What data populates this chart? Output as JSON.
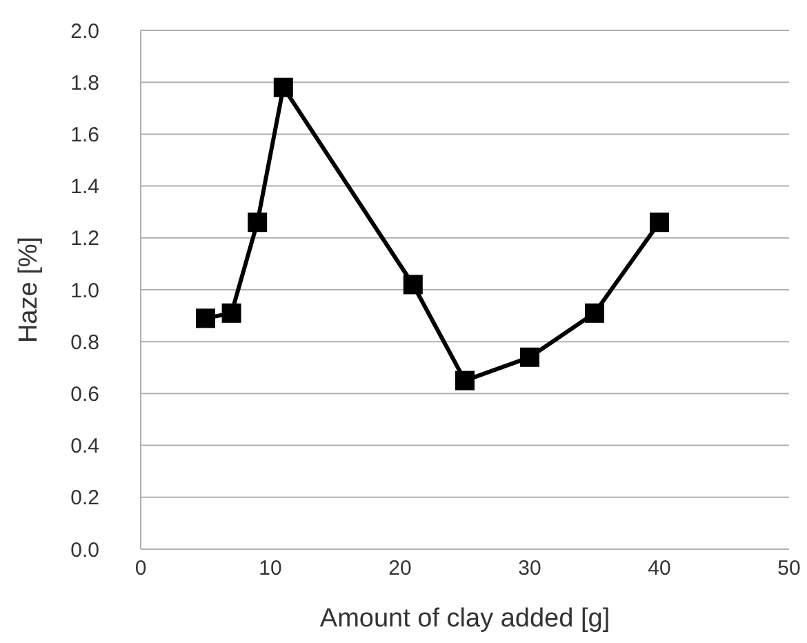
{
  "chart_data": {
    "type": "line",
    "xlabel": "Amount of clay added [g]",
    "ylabel": "Haze [%]",
    "x": [
      5,
      7,
      9,
      11,
      21,
      25,
      30,
      35,
      40
    ],
    "series": [
      {
        "color": "#000000",
        "values": [
          0.89,
          0.91,
          1.26,
          1.78,
          1.02,
          0.65,
          0.74,
          0.91,
          1.26
        ]
      }
    ],
    "xlim": [
      0,
      50
    ],
    "xticks": [
      0,
      10,
      20,
      30,
      40,
      50
    ],
    "ylim": [
      0,
      2
    ],
    "yticks": [
      {
        "value": 0,
        "label": "0.0"
      },
      {
        "value": 0.2,
        "label": "0.2"
      },
      {
        "value": 0.4,
        "label": "0.4"
      },
      {
        "value": 0.6,
        "label": "0.6"
      },
      {
        "value": 0.8,
        "label": "0.8"
      },
      {
        "value": 1,
        "label": "1.0"
      },
      {
        "value": 1.2,
        "label": "1.2"
      },
      {
        "value": 1.4,
        "label": "1.4"
      },
      {
        "value": 1.6,
        "label": "1.6"
      },
      {
        "value": 1.8,
        "label": "1.8"
      },
      {
        "value": 2,
        "label": "2.0"
      }
    ],
    "grid": "y",
    "marker": "square",
    "line_style": "solid",
    "legend": false
  }
}
